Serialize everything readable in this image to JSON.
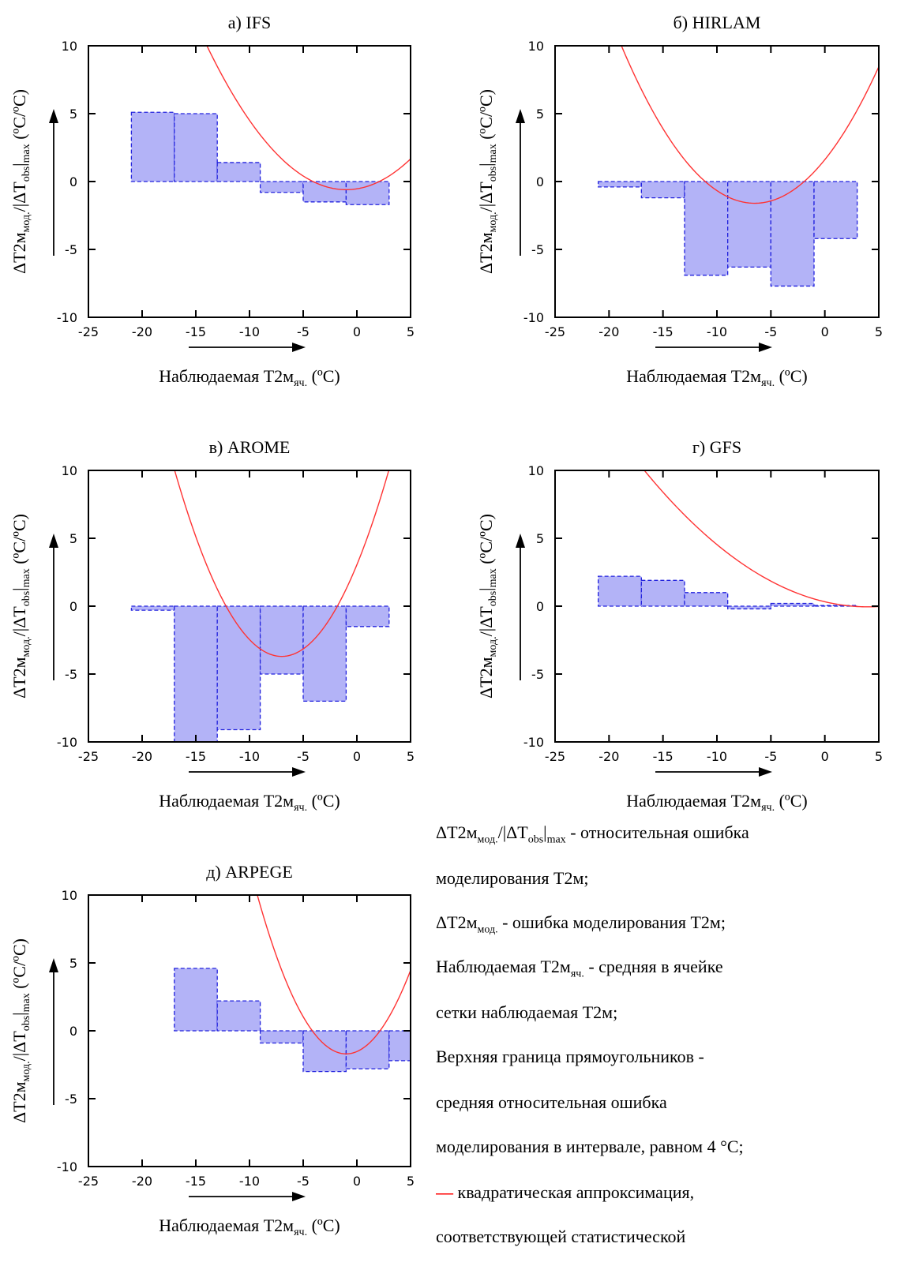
{
  "charts": [
    {
      "title": "а) IFS",
      "ylabel_main": "ΔT2м",
      "ylabel_sub1": "мод.",
      "ylabel_mid": "/|ΔT",
      "ylabel_sub2": "obs",
      "ylabel_tail": "|",
      "ylabel_sub3": "max",
      "ylabel_units": " (ºC/ºC)",
      "xlabel_main": "Наблюдаемая T2м",
      "xlabel_sub": "яч.",
      "xlabel_units": " (ºC)"
    },
    {
      "title": "б) HIRLAM",
      "ylabel_main": "ΔT2м",
      "ylabel_sub1": "мод.",
      "ylabel_mid": "/|ΔT",
      "ylabel_sub2": "obs",
      "ylabel_tail": "|",
      "ylabel_sub3": "max",
      "ylabel_units": " (ºC/ºC)",
      "xlabel_main": "Наблюдаемая T2м",
      "xlabel_sub": "яч.",
      "xlabel_units": " (ºC)"
    },
    {
      "title": "в) AROME",
      "ylabel_main": "ΔT2м",
      "ylabel_sub1": "мод.",
      "ylabel_mid": "/|ΔT",
      "ylabel_sub2": "obs",
      "ylabel_tail": "|",
      "ylabel_sub3": "max",
      "ylabel_units": " (ºC/ºC)",
      "xlabel_main": "Наблюдаемая T2м",
      "xlabel_sub": "яч.",
      "xlabel_units": " (ºC)"
    },
    {
      "title": "г) GFS",
      "ylabel_main": "ΔT2м",
      "ylabel_sub1": "мод.",
      "ylabel_mid": "/|ΔT",
      "ylabel_sub2": "obs",
      "ylabel_tail": "|",
      "ylabel_sub3": "max",
      "ylabel_units": " (ºC/ºC)",
      "xlabel_main": "Наблюдаемая T2м",
      "xlabel_sub": "яч.",
      "xlabel_units": " (ºC)"
    },
    {
      "title": "д) ARPEGE",
      "ylabel_main": "ΔT2м",
      "ylabel_sub1": "мод.",
      "ylabel_mid": "/|ΔT",
      "ylabel_sub2": "obs",
      "ylabel_tail": "|",
      "ylabel_sub3": "max",
      "ylabel_units": " (ºC/ºC)",
      "xlabel_main": "Наблюдаемая T2м",
      "xlabel_sub": "яч.",
      "xlabel_units": " (ºC)"
    }
  ],
  "chart_data": [
    {
      "type": "bar",
      "x_ticks": [
        -25,
        -20,
        -15,
        -10,
        -5,
        0,
        5
      ],
      "y_ticks": [
        -10,
        -5,
        0,
        5,
        10
      ],
      "xlim": [
        -25,
        5
      ],
      "ylim": [
        -10,
        10
      ],
      "bin_width": 4,
      "bins": [
        {
          "x0": -21,
          "x1": -17,
          "value": 5.1
        },
        {
          "x0": -17,
          "x1": -13,
          "value": 5.0
        },
        {
          "x0": -13,
          "x1": -9,
          "value": 1.4
        },
        {
          "x0": -9,
          "x1": -5,
          "value": -0.8
        },
        {
          "x0": -5,
          "x1": -1,
          "value": -1.5
        },
        {
          "x0": -1,
          "x1": 3,
          "value": -1.7
        }
      ],
      "fit": {
        "type": "quadratic",
        "vertex_x": -1,
        "vertex_y": -0.6,
        "curvature": 0.0097
      }
    },
    {
      "type": "bar",
      "x_ticks": [
        -25,
        -20,
        -15,
        -10,
        -5,
        0,
        5
      ],
      "y_ticks": [
        -10,
        -5,
        0,
        5,
        10
      ],
      "xlim": [
        -25,
        5
      ],
      "ylim": [
        -10,
        10
      ],
      "bin_width": 4,
      "bins": [
        {
          "x0": -21,
          "x1": -17,
          "value": -0.4
        },
        {
          "x0": -17,
          "x1": -13,
          "value": -1.2
        },
        {
          "x0": -13,
          "x1": -9,
          "value": -6.9
        },
        {
          "x0": -9,
          "x1": -5,
          "value": -6.3
        },
        {
          "x0": -5,
          "x1": -1,
          "value": -7.7
        },
        {
          "x0": -1,
          "x1": 3,
          "value": -4.2
        }
      ],
      "fit": {
        "type": "quadratic",
        "vertex_x": -6.5,
        "vertex_y": -1.6,
        "curvature": 0.0117
      }
    },
    {
      "type": "bar",
      "x_ticks": [
        -25,
        -20,
        -15,
        -10,
        -5,
        0,
        5
      ],
      "y_ticks": [
        -10,
        -5,
        0,
        5,
        10
      ],
      "xlim": [
        -25,
        5
      ],
      "ylim": [
        -10,
        10
      ],
      "bin_width": 4,
      "bins": [
        {
          "x0": -21,
          "x1": -17,
          "value": -0.3
        },
        {
          "x0": -17,
          "x1": -13,
          "value": -10.0
        },
        {
          "x0": -13,
          "x1": -9,
          "value": -9.1
        },
        {
          "x0": -9,
          "x1": -5,
          "value": -5.0
        },
        {
          "x0": -5,
          "x1": -1,
          "value": -7.0
        },
        {
          "x0": -1,
          "x1": 3,
          "value": -1.5
        }
      ],
      "fit": {
        "type": "quadratic",
        "vertex_x": -7,
        "vertex_y": -3.7,
        "curvature": 0.0212
      }
    },
    {
      "type": "bar",
      "x_ticks": [
        -25,
        -20,
        -15,
        -10,
        -5,
        0,
        5
      ],
      "y_ticks": [
        -10,
        -5,
        0,
        5,
        10
      ],
      "xlim": [
        -25,
        5
      ],
      "ylim": [
        -10,
        10
      ],
      "bin_width": 4,
      "bins": [
        {
          "x0": -21,
          "x1": -17,
          "value": 2.2
        },
        {
          "x0": -17,
          "x1": -13,
          "value": 1.9
        },
        {
          "x0": -13,
          "x1": -9,
          "value": 1.0
        },
        {
          "x0": -9,
          "x1": -5,
          "value": -0.2
        },
        {
          "x0": -5,
          "x1": -1,
          "value": 0.2
        },
        {
          "x0": -1,
          "x1": 3,
          "value": 0.05
        }
      ],
      "fit": {
        "type": "quadratic",
        "vertex_x": 4,
        "vertex_y": -0.05,
        "curvature": 0.0036
      }
    },
    {
      "type": "bar",
      "x_ticks": [
        -25,
        -20,
        -15,
        -10,
        -5,
        0,
        5
      ],
      "y_ticks": [
        -10,
        -5,
        0,
        5,
        10
      ],
      "xlim": [
        -25,
        5
      ],
      "ylim": [
        -10,
        10
      ],
      "bin_width": 4,
      "bins": [
        {
          "x0": -17,
          "x1": -13,
          "value": 4.6
        },
        {
          "x0": -13,
          "x1": -9,
          "value": 2.2
        },
        {
          "x0": -9,
          "x1": -5,
          "value": -0.9
        },
        {
          "x0": -5,
          "x1": -1,
          "value": -3.0
        },
        {
          "x0": -1,
          "x1": 3,
          "value": -2.8
        },
        {
          "x0": 3,
          "x1": 5,
          "value": -2.2
        }
      ],
      "fit": {
        "type": "quadratic",
        "vertex_x": -1,
        "vertex_y": -1.7,
        "curvature": 0.0263
      }
    }
  ],
  "legend": {
    "line1_main": "ΔT2м",
    "line1_sub1": "мод.",
    "line1_mid": "/|ΔT",
    "line1_sub2": "obs",
    "line1_tail": "|",
    "line1_sub3": "max",
    "line1_rest": " - относительная ошибка",
    "line2": "моделирования T2м;",
    "line3_main": "ΔT2м",
    "line3_sub": "мод.",
    "line3_rest": " - ошибка моделирования T2м;",
    "line4_main": "Наблюдаемая T2м",
    "line4_sub": "яч.",
    "line4_rest": " - средняя в ячейке",
    "line5": "сетки наблюдаемая T2м;",
    "line6": "Верхняя граница прямоугольников -",
    "line7": "средняя относительная ошибка",
    "line8": "моделирования в интервале, равном 4 °C;",
    "line9_dash": "—",
    "line9_rest": " квадратическая аппроксимация,",
    "line10": "соответствующей статистической"
  },
  "colors": {
    "bar_fill": "#b3b3f7",
    "bar_stroke": "#2222dd",
    "fit_line": "#ff3333",
    "axis": "#000000"
  }
}
